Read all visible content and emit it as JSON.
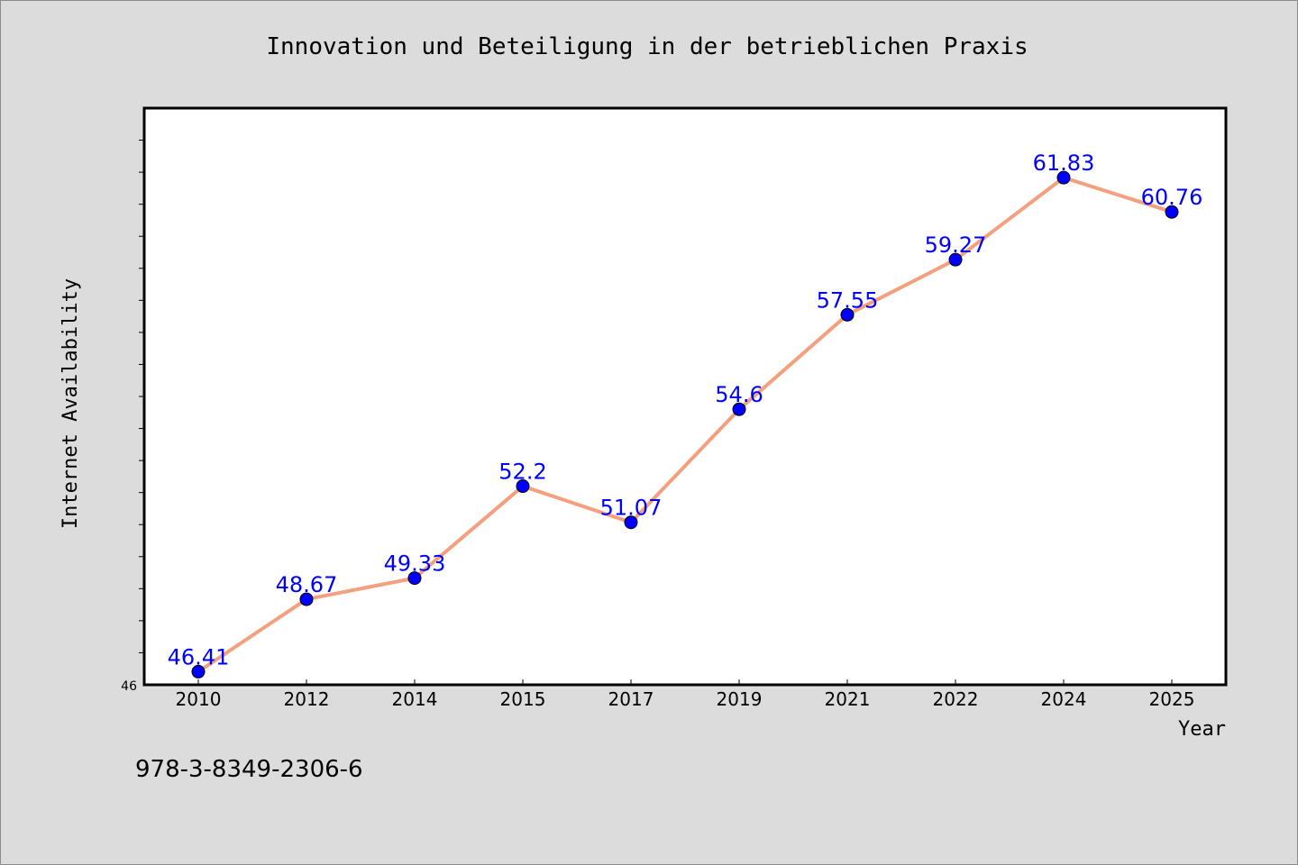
{
  "chart_data": {
    "type": "line",
    "title": "Innovation und Beteiligung in der betrieblichen Praxis",
    "xlabel": "Year",
    "ylabel": "Internet Availability",
    "categories": [
      "2010",
      "2012",
      "2014",
      "2015",
      "2017",
      "2019",
      "2021",
      "2022",
      "2024",
      "2025"
    ],
    "series": [
      {
        "values": [
          46.41,
          48.67,
          49.33,
          52.2,
          51.07,
          54.6,
          57.55,
          59.27,
          61.83,
          60.76
        ]
      }
    ],
    "data_labels": [
      "46.41",
      "48.67",
      "49.33",
      "52.2",
      "51.07",
      "54.6",
      "57.55",
      "59.27",
      "61.83",
      "60.76"
    ],
    "ylim": [
      46,
      64
    ],
    "y_tick_label": "46",
    "grid": false,
    "colors": {
      "line": "#f4a07e",
      "marker": "#0000ff",
      "data_label": "#0000ff",
      "plot_background": "#ffffff",
      "figure_background": "#dcdcdc"
    }
  },
  "footnote": "978-3-8349-2306-6"
}
